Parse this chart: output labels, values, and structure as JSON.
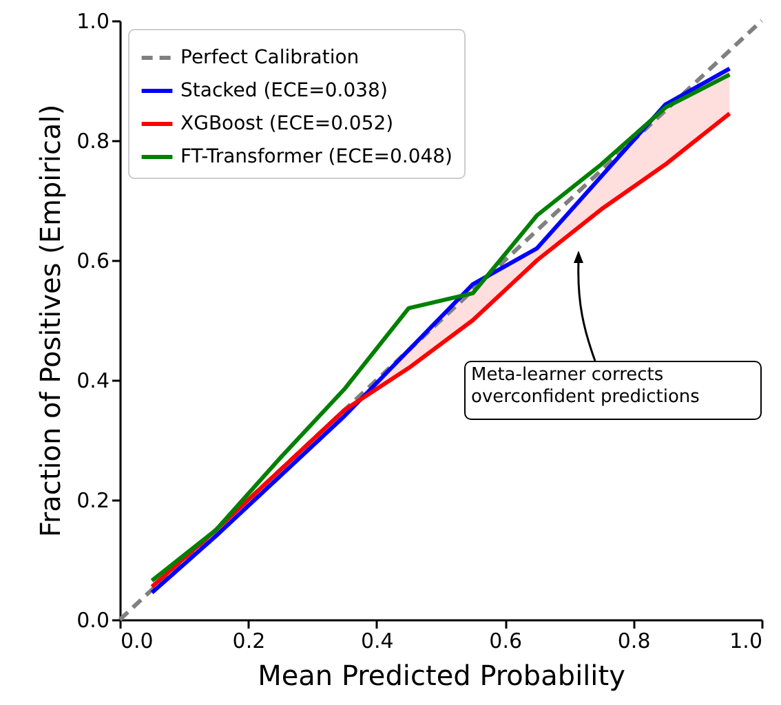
{
  "chart_data": {
    "type": "line",
    "xlabel": "Mean Predicted Probability",
    "ylabel": "Fraction of Positives (Empirical)",
    "x": [
      0.05,
      0.15,
      0.25,
      0.35,
      0.45,
      0.55,
      0.65,
      0.75,
      0.85,
      0.95
    ],
    "series": [
      {
        "name": "Perfect Calibration",
        "color": "#808080",
        "x": [
          0,
          1
        ],
        "values": [
          0,
          1
        ],
        "line_style": "dashed"
      },
      {
        "name": "Stacked (ECE=0.038)",
        "color": "#0000ff",
        "values": [
          0.045,
          0.14,
          0.24,
          0.34,
          0.45,
          0.56,
          0.62,
          0.74,
          0.86,
          0.92
        ]
      },
      {
        "name": "XGBoost (ECE=0.052)",
        "color": "#ff0000",
        "values": [
          0.055,
          0.15,
          0.25,
          0.35,
          0.42,
          0.5,
          0.6,
          0.685,
          0.76,
          0.845
        ],
        "lower": [
          0.055,
          0.15,
          0.25,
          0.35,
          0.42,
          0.5,
          0.6,
          0.685,
          0.76,
          0.845
        ],
        "upper": [
          0.045,
          0.14,
          0.24,
          0.34,
          0.45,
          0.56,
          0.62,
          0.74,
          0.86,
          0.92
        ]
      },
      {
        "name": "FT-Transformer (ECE=0.048)",
        "color": "#008000",
        "values": [
          0.065,
          0.15,
          0.27,
          0.385,
          0.52,
          0.545,
          0.675,
          0.76,
          0.855,
          0.91
        ]
      }
    ],
    "xlim": [
      0,
      1
    ],
    "ylim": [
      0,
      1
    ],
    "xticks": [
      {
        "value": 0,
        "label": "0.0"
      },
      0.2,
      0.4,
      0.6,
      0.8,
      {
        "value": 1,
        "label": "1.0"
      }
    ],
    "yticks": [
      {
        "value": 0,
        "label": "0.0"
      },
      0.2,
      0.4,
      0.6,
      0.8,
      {
        "value": 1,
        "label": "1.0"
      }
    ],
    "annotations": [
      "Meta-learner corrects\noverconfident predictions"
    ],
    "legend": "top left",
    "grid": false
  }
}
